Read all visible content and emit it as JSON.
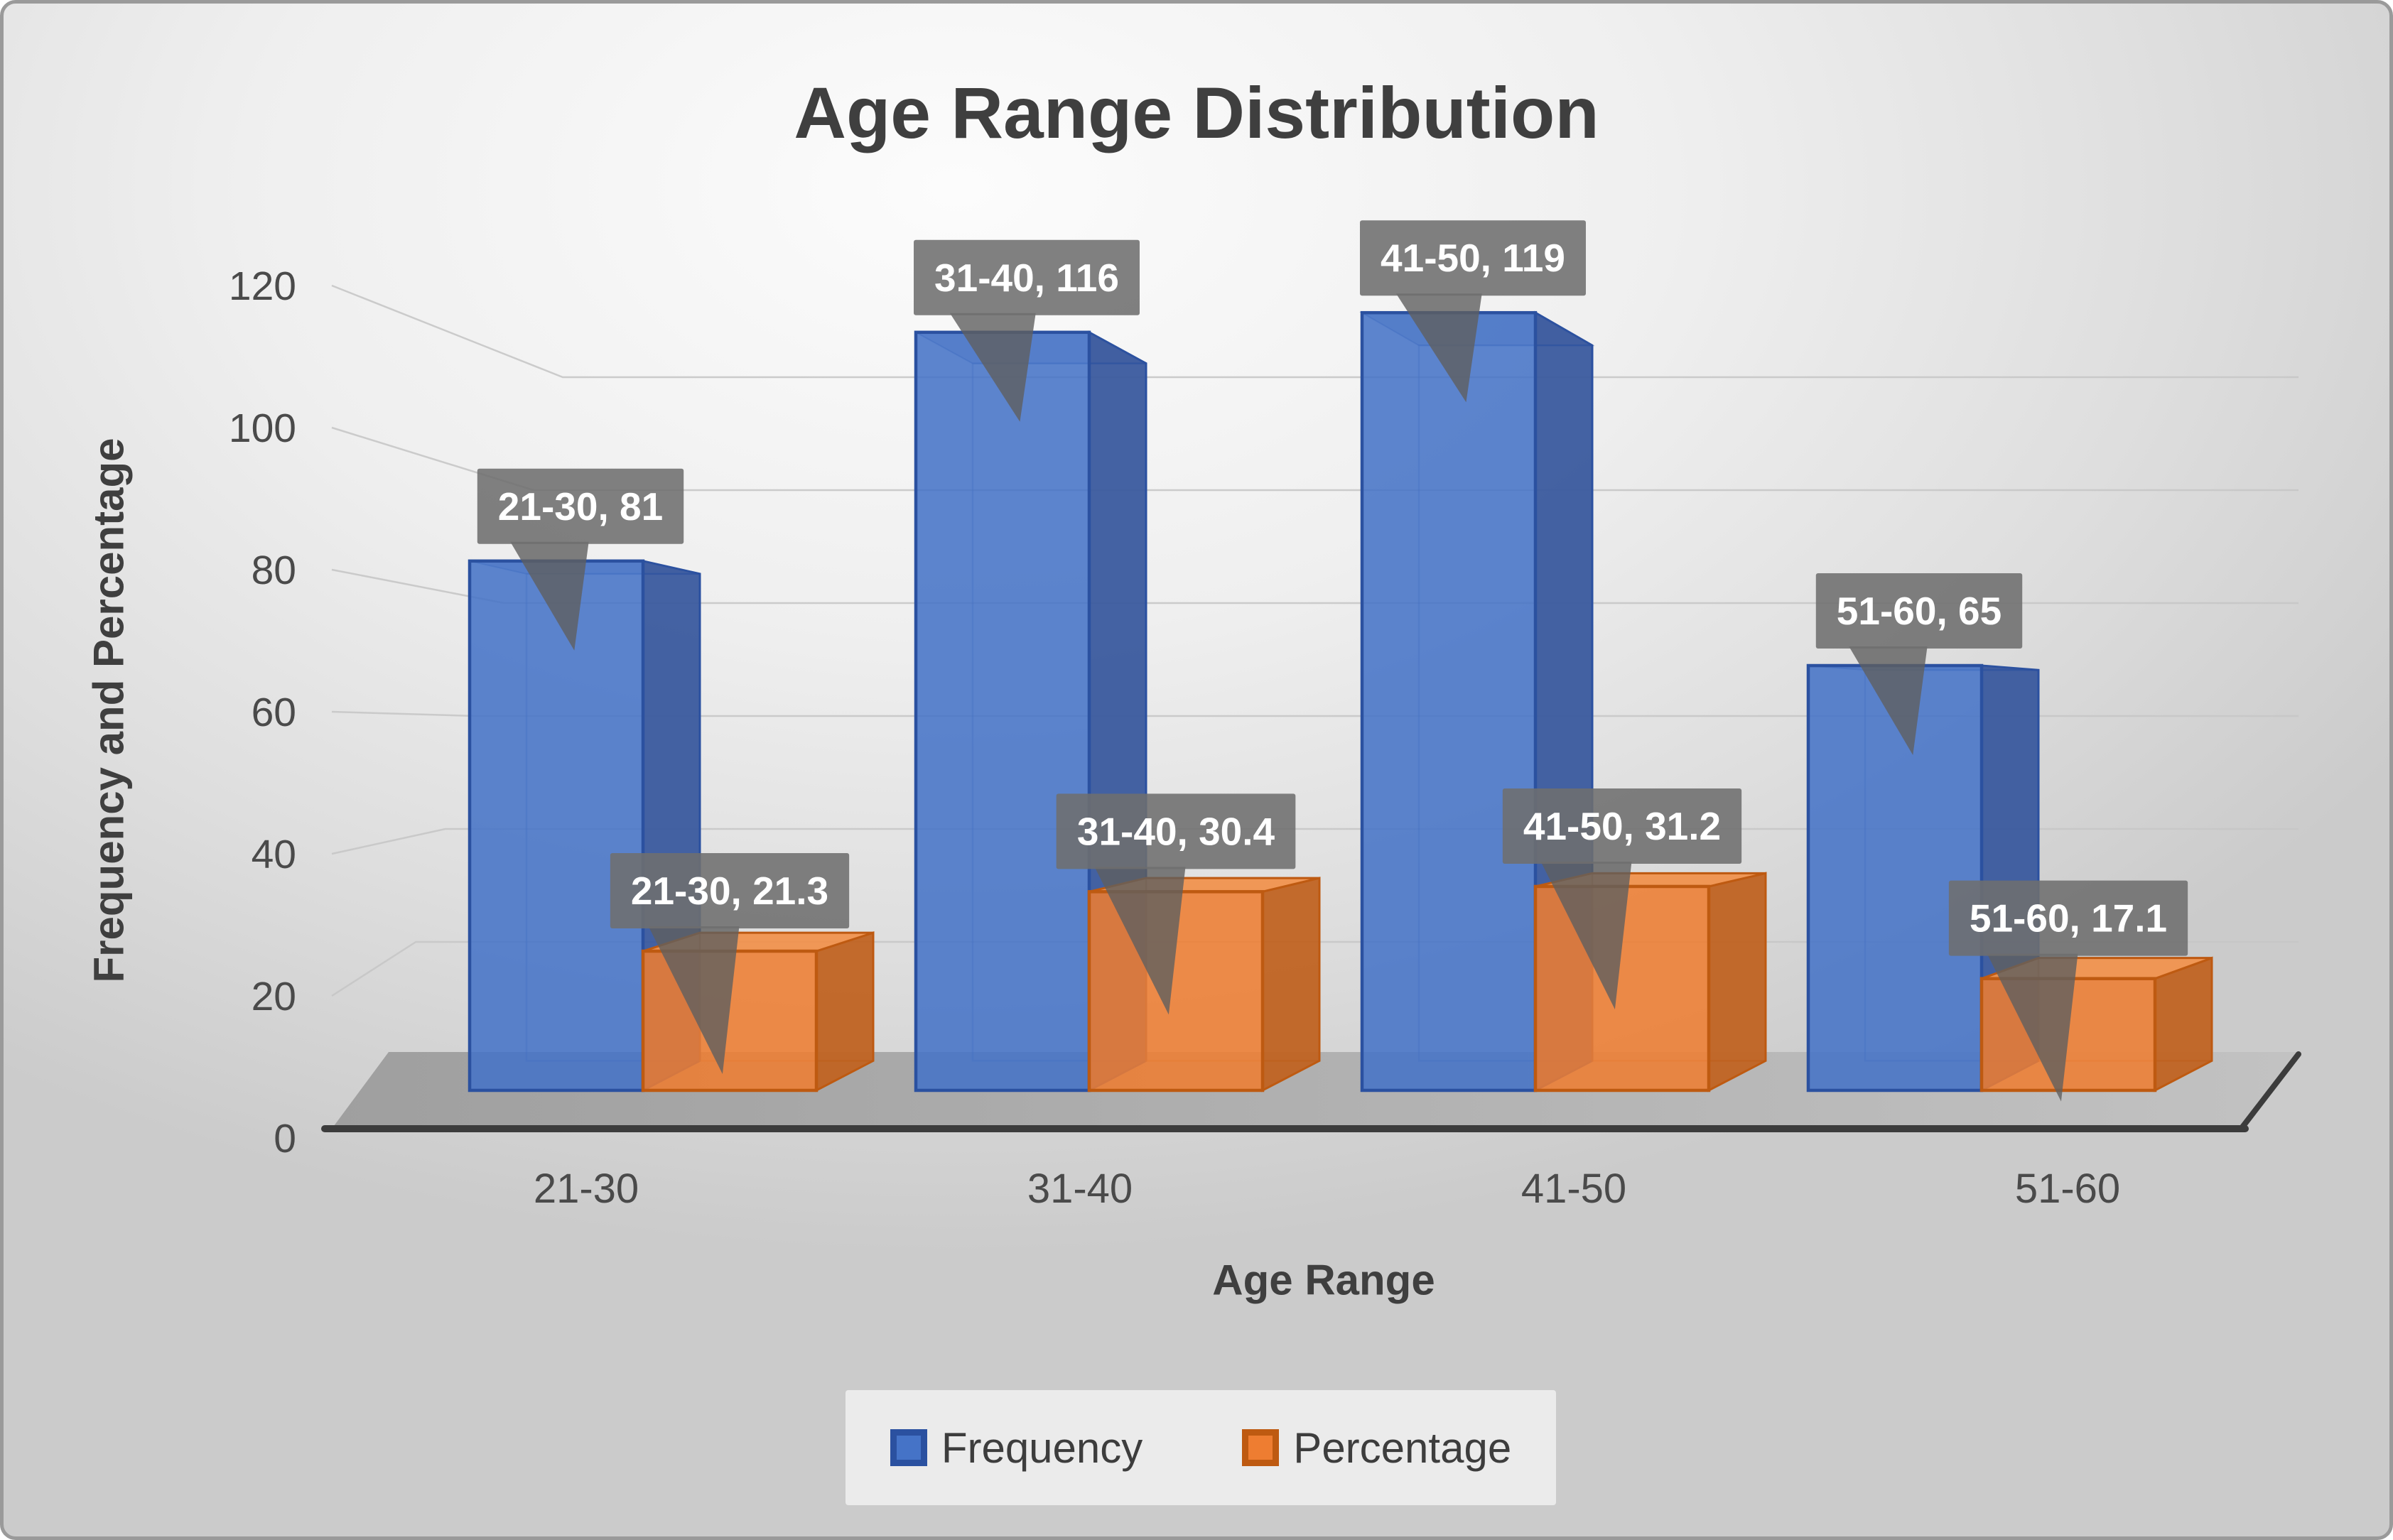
{
  "title": "Age Range Distribution",
  "chart_data": {
    "type": "bar",
    "variant": "3d-clustered-column",
    "title": "Age Range Distribution",
    "categories": [
      "21-30",
      "31-40",
      "41-50",
      "51-60"
    ],
    "series": [
      {
        "name": "Frequency",
        "values": [
          81,
          116,
          119,
          65
        ],
        "data_labels": [
          "21-30, 81",
          "31-40, 116",
          "41-50, 119",
          "51-60, 65"
        ],
        "colors": {
          "front": "#4573C7",
          "border": "#2B51A0",
          "side": "#3A5A9E",
          "top": "#5C86D4"
        }
      },
      {
        "name": "Percentage",
        "values": [
          21.3,
          30.4,
          31.2,
          17.1
        ],
        "data_labels": [
          "21-30, 21.3",
          "31-40, 30.4",
          "41-50, 31.2",
          "51-60, 17.1"
        ],
        "colors": {
          "front": "#EE7D31",
          "border": "#BE5A11",
          "side": "#C06322",
          "top": "#F0924E"
        }
      }
    ],
    "xlabel": "Age Range",
    "ylabel": "Frequency and Percentage",
    "ylim": [
      0,
      120
    ],
    "yticks": [
      0,
      20,
      40,
      60,
      80,
      100,
      120
    ],
    "grid": true,
    "legend_position": "bottom"
  },
  "colors": {
    "canvas_border": "#9a9a9a",
    "title_text": "#3f3f3f",
    "axis_text": "#4a4a4a",
    "gridline": "#c7c7c7",
    "floor_dark": "#9f9f9f",
    "floor_light": "#c2c2c2",
    "axis_line": "#3c3c3c",
    "callout_fill": "rgba(110,110,110,0.88)",
    "callout_tail": "rgba(95,95,95,0.80)",
    "callout_text": "#ffffff",
    "legend_panel": "#ebebeb",
    "legend_text": "#3d3d3d"
  }
}
